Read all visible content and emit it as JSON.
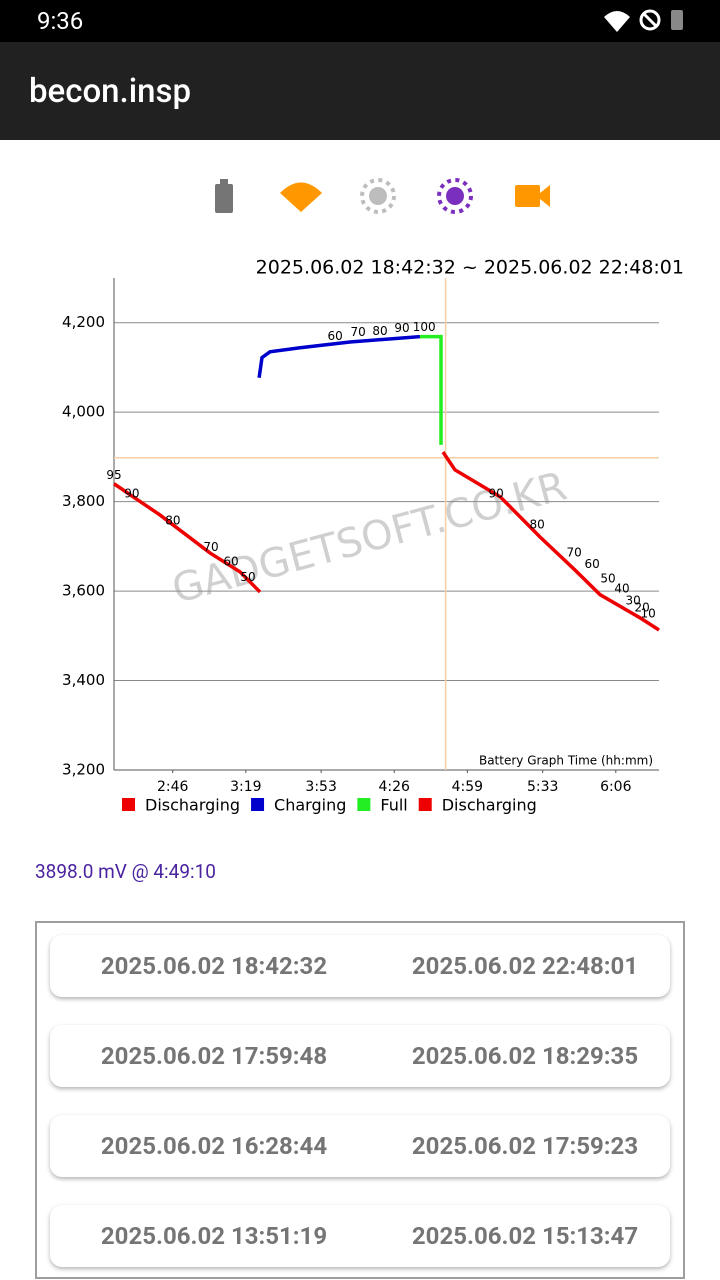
{
  "status_bar": {
    "time": "9:36"
  },
  "app_bar": {
    "title": "becon.insp"
  },
  "chart_data": {
    "type": "line",
    "title": "2025.06.02 18:42:32 ~ 2025.06.02 22:48:01",
    "x_label": "Battery Graph Time (hh:mm)",
    "watermark": "GADGETSOFT.CO.KR",
    "xlim": [
      139.5,
      385.5
    ],
    "xticks": [
      {
        "value": 166,
        "label": "2:46"
      },
      {
        "value": 199,
        "label": "3:19"
      },
      {
        "value": 233,
        "label": "3:53"
      },
      {
        "value": 266,
        "label": "4:26"
      },
      {
        "value": 299,
        "label": "4:59"
      },
      {
        "value": 333,
        "label": "5:33"
      },
      {
        "value": 366,
        "label": "6:06"
      }
    ],
    "ylim": [
      3200,
      4300
    ],
    "yticks": [
      {
        "value": 3200,
        "label": "3,200"
      },
      {
        "value": 3400,
        "label": "3,400"
      },
      {
        "value": 3600,
        "label": "3,600"
      },
      {
        "value": 3800,
        "label": "3,800"
      },
      {
        "value": 4000,
        "label": "4,000"
      },
      {
        "value": 4200,
        "label": "4,200"
      }
    ],
    "grid": true,
    "legend": "bottom-left",
    "series": [
      {
        "name": "Discharging",
        "color": "#ee0000",
        "x": [
          139.5,
          160.3,
          182.9,
          196.4,
          205.4
        ],
        "values": [
          3840,
          3770,
          3685,
          3643,
          3598
        ]
      },
      {
        "name": "Charging",
        "color": "#0000cc",
        "x": [
          205.0,
          206.3,
          209.9,
          223.5,
          246.0,
          277.6
        ],
        "values": [
          4077,
          4122,
          4135,
          4144,
          4157,
          4169
        ]
      },
      {
        "name": "Full",
        "color": "#22ee22",
        "x": [
          277.6,
          287.1,
          287.1
        ],
        "values": [
          4169,
          4169,
          3927
        ]
      },
      {
        "name": "Discharging",
        "color": "#ee0000",
        "x": [
          288.0,
          293.4,
          313.8,
          331.8,
          347.6,
          358.9,
          377.0,
          385.5
        ],
        "values": [
          3911,
          3871,
          3811,
          3721,
          3647,
          3592,
          3540,
          3513
        ]
      }
    ],
    "annotations": [
      {
        "text": "95",
        "x": 139.5,
        "y": 3858
      },
      {
        "text": "90",
        "x": 147.6,
        "y": 3817
      },
      {
        "text": "80",
        "x": 166.1,
        "y": 3757
      },
      {
        "text": "70",
        "x": 183.3,
        "y": 3697
      },
      {
        "text": "60",
        "x": 192.3,
        "y": 3665
      },
      {
        "text": "50",
        "x": 200.0,
        "y": 3630
      },
      {
        "text": "60",
        "x": 239.3,
        "y": 4169
      },
      {
        "text": "70",
        "x": 249.7,
        "y": 4178
      },
      {
        "text": "80",
        "x": 259.6,
        "y": 4180
      },
      {
        "text": "90",
        "x": 269.5,
        "y": 4187
      },
      {
        "text": "100",
        "x": 279.5,
        "y": 4189
      },
      {
        "text": "90",
        "x": 312.0,
        "y": 3817
      },
      {
        "text": "80",
        "x": 330.5,
        "y": 3748
      },
      {
        "text": "70",
        "x": 347.2,
        "y": 3685
      },
      {
        "text": "60",
        "x": 355.3,
        "y": 3659
      },
      {
        "text": "50",
        "x": 362.5,
        "y": 3627
      },
      {
        "text": "40",
        "x": 368.8,
        "y": 3605
      },
      {
        "text": "30",
        "x": 373.8,
        "y": 3578
      },
      {
        "text": "20",
        "x": 377.9,
        "y": 3562
      },
      {
        "text": "10",
        "x": 380.6,
        "y": 3549
      }
    ],
    "crosshair": {
      "x": 289.17,
      "y": 3898
    }
  },
  "readout": "3898.0 mV @  4:49:10",
  "sessions": [
    {
      "start": "2025.06.02 18:42:32",
      "end": "2025.06.02 22:48:01"
    },
    {
      "start": "2025.06.02 17:59:48",
      "end": "2025.06.02 18:29:35"
    },
    {
      "start": "2025.06.02 16:28:44",
      "end": "2025.06.02 17:59:23"
    },
    {
      "start": "2025.06.02 13:51:19",
      "end": "2025.06.02 15:13:47"
    }
  ]
}
